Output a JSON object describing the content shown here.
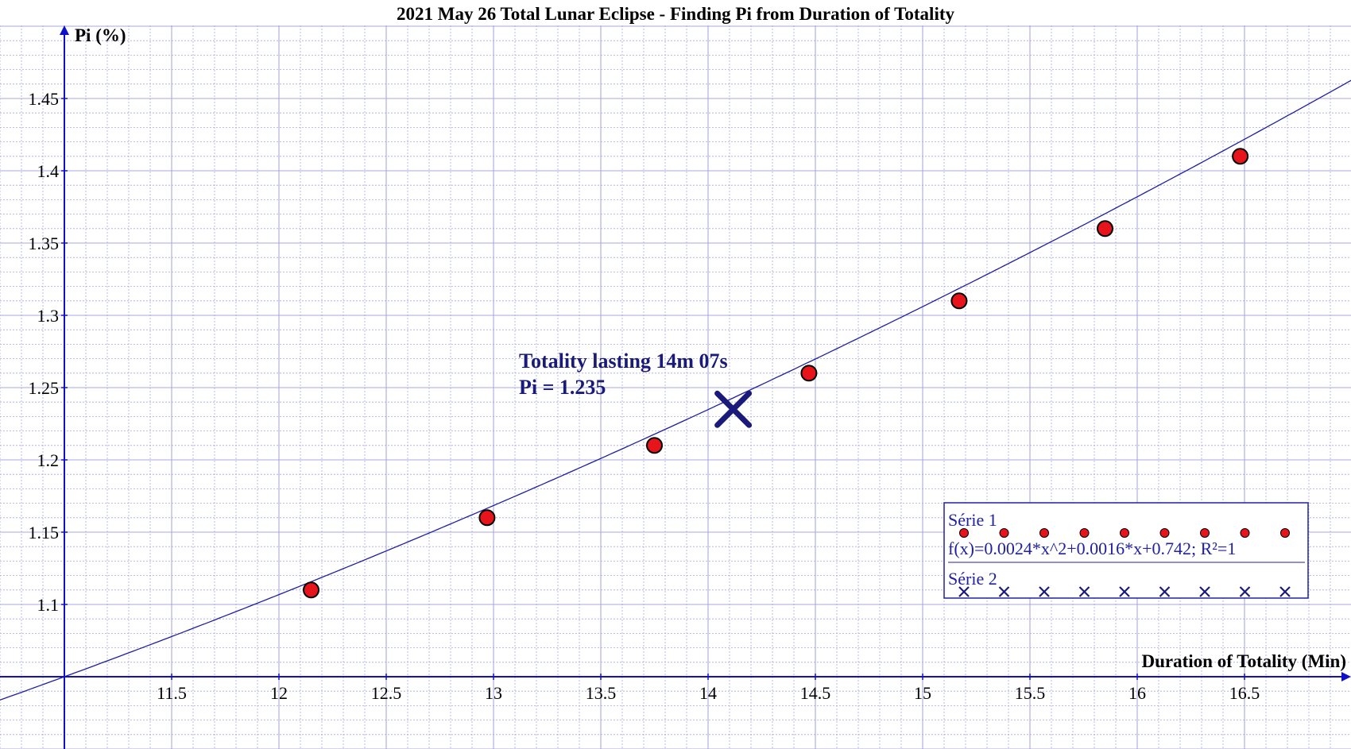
{
  "chart_data": {
    "type": "scatter",
    "title": "2021 May 26 Total Lunar Eclipse - Finding Pi from Duration of Totality",
    "xlabel": "Duration of Totality (Min)",
    "ylabel": "Pi (%)",
    "xlim": [
      11,
      17
    ],
    "ylim": [
      1.05,
      1.5
    ],
    "grid": true,
    "x_ticks": [
      "11.5",
      "12",
      "12.5",
      "13",
      "13.5",
      "14",
      "14.5",
      "15",
      "15.5",
      "16",
      "16.5"
    ],
    "y_ticks": [
      "1.1",
      "1.15",
      "1.2",
      "1.25",
      "1.3",
      "1.35",
      "1.4",
      "1.45"
    ],
    "series": [
      {
        "name": "Série 1",
        "marker": "circle",
        "color": "#e8141c",
        "x": [
          12.15,
          12.97,
          13.75,
          14.47,
          15.17,
          15.85,
          16.48
        ],
        "y": [
          1.11,
          1.16,
          1.21,
          1.26,
          1.31,
          1.36,
          1.41
        ]
      },
      {
        "name": "Série 2",
        "marker": "x",
        "color": "#1a1a7a",
        "x": [
          14.117
        ],
        "y": [
          1.235
        ]
      }
    ],
    "fit": {
      "label": "f(x)=0.0024*x^2+0.0016*x+0.742; R²=1",
      "a": 0.0024,
      "b": 0.0016,
      "c": 0.742,
      "color": "#2020a0"
    },
    "annotation": {
      "line1": "Totality lasting 14m 07s",
      "line2": "Pi = 1.235",
      "color": "#1a1a7a"
    },
    "legend_position": "bottom-right",
    "axis_color": "#1010c8",
    "grid_color": "#a8a8e0"
  }
}
